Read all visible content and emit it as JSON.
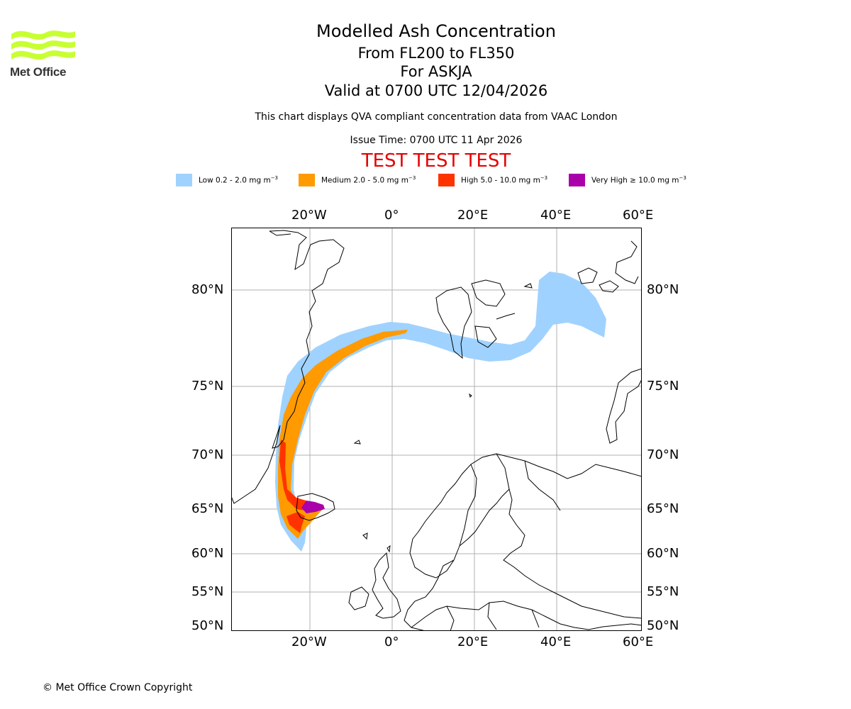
{
  "logo": {
    "text": "Met Office",
    "color": "#c8ff32"
  },
  "titles": {
    "main": "Modelled Ash Concentration",
    "levels": "From FL200 to FL350",
    "volcano": "For ASKJA",
    "valid": "Valid at 0700 UTC 12/04/2026"
  },
  "subtitle": "This chart displays QVA compliant concentration data from VAAC London",
  "issue_time": "Issue Time: 0700 UTC 11 Apr 2026",
  "test_banner": "TEST TEST TEST",
  "legend": [
    {
      "label": "Low 0.2 - 2.0 mg m",
      "color": "#a0d2ff"
    },
    {
      "label": "Medium 2.0 - 5.0 mg m",
      "color": "#ff9a00"
    },
    {
      "label": "High 5.0 - 10.0 mg m",
      "color": "#ff3300"
    },
    {
      "label": "Very High ≥ 10.0 mg m",
      "color": "#aa00aa"
    }
  ],
  "legend_unit_exp": "−3",
  "axes": {
    "lon_ticks": [
      "20°W",
      "0°",
      "20°E",
      "40°E",
      "60°E"
    ],
    "lat_ticks": [
      "80°N",
      "75°N",
      "70°N",
      "65°N",
      "60°N",
      "55°N",
      "50°N"
    ]
  },
  "copyright": "© Met Office Crown Copyright"
}
